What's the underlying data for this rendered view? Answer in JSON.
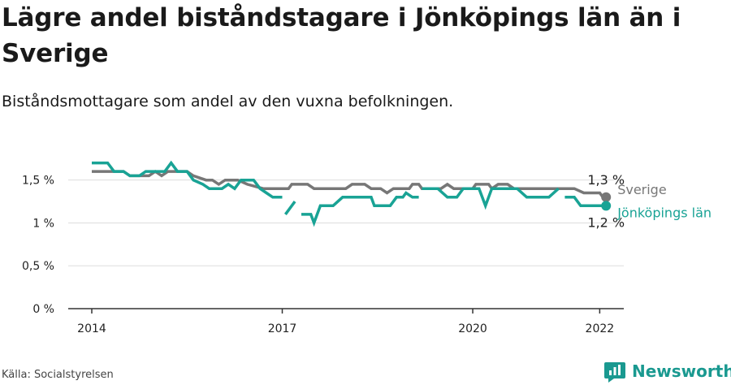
{
  "title": "Lägre andel biståndstagare i Jönköpings län än i Sverige",
  "subtitle": "Biståndsmottagare som andel av den vuxna befolkningen.",
  "source": "Källa: Socialstyrelsen",
  "brand": {
    "name": "Newsworthy",
    "icon": "newsworthy-logo-icon"
  },
  "colors": {
    "sverige": "#777777",
    "jonkoping": "#19a395",
    "grid": "#dddddd",
    "axis": "#333333"
  },
  "chart_data": {
    "type": "line",
    "xlim": [
      2014.0,
      2022.75
    ],
    "ylim": [
      0,
      1.8
    ],
    "x_ticks": [
      {
        "value": 2014,
        "label": "2014"
      },
      {
        "value": 2017,
        "label": "2017"
      },
      {
        "value": 2020,
        "label": "2020"
      },
      {
        "value": 2022,
        "label": "2022"
      }
    ],
    "y_ticks": [
      {
        "value": 0,
        "label": "0 %"
      },
      {
        "value": 0.5,
        "label": "0,5 %"
      },
      {
        "value": 1,
        "label": "1 %"
      },
      {
        "value": 1.5,
        "label": "1,5 %"
      }
    ],
    "series": [
      {
        "name": "Sverige",
        "color": "#777777",
        "end_label": "1,3 %",
        "points": [
          [
            2014.0,
            1.6
          ],
          [
            2014.3,
            1.6
          ],
          [
            2014.4,
            1.6
          ],
          [
            2014.5,
            1.6
          ],
          [
            2014.6,
            1.55
          ],
          [
            2014.9,
            1.55
          ],
          [
            2015.0,
            1.6
          ],
          [
            2015.1,
            1.55
          ],
          [
            2015.2,
            1.6
          ],
          [
            2015.5,
            1.6
          ],
          [
            2015.6,
            1.55
          ],
          [
            2015.8,
            1.5
          ],
          [
            2015.9,
            1.5
          ],
          [
            2016.0,
            1.45
          ],
          [
            2016.1,
            1.5
          ],
          [
            2016.3,
            1.5
          ],
          [
            2016.45,
            1.45
          ],
          [
            2016.7,
            1.4
          ],
          [
            2016.9,
            1.4
          ],
          [
            2017.0,
            1.4
          ],
          [
            2017.1,
            1.4
          ],
          [
            2017.15,
            1.45
          ],
          [
            2017.4,
            1.45
          ],
          [
            2017.5,
            1.4
          ],
          [
            2017.7,
            1.4
          ],
          [
            2017.9,
            1.4
          ],
          [
            2018.0,
            1.4
          ],
          [
            2018.1,
            1.45
          ],
          [
            2018.3,
            1.45
          ],
          [
            2018.4,
            1.4
          ],
          [
            2018.55,
            1.4
          ],
          [
            2018.65,
            1.35
          ],
          [
            2018.75,
            1.4
          ],
          [
            2018.9,
            1.4
          ],
          [
            2019.0,
            1.4
          ],
          [
            2019.05,
            1.45
          ],
          [
            2019.15,
            1.45
          ],
          [
            2019.2,
            1.4
          ],
          [
            2019.5,
            1.4
          ],
          [
            2019.6,
            1.45
          ],
          [
            2019.7,
            1.4
          ],
          [
            2019.9,
            1.4
          ],
          [
            2020.0,
            1.4
          ],
          [
            2020.05,
            1.45
          ],
          [
            2020.25,
            1.45
          ],
          [
            2020.3,
            1.4
          ],
          [
            2020.4,
            1.45
          ],
          [
            2020.55,
            1.45
          ],
          [
            2020.65,
            1.4
          ],
          [
            2020.8,
            1.4
          ],
          [
            2021.0,
            1.4
          ],
          [
            2021.2,
            1.4
          ],
          [
            2021.4,
            1.4
          ],
          [
            2021.6,
            1.4
          ],
          [
            2021.75,
            1.35
          ],
          [
            2022.0,
            1.35
          ],
          [
            2022.05,
            1.3
          ],
          [
            2022.1,
            1.3
          ]
        ]
      },
      {
        "name": "Jönköpings län",
        "color": "#19a395",
        "end_label": "1,2 %",
        "segments": [
          [
            [
              2014.0,
              1.7
            ],
            [
              2014.25,
              1.7
            ],
            [
              2014.35,
              1.6
            ],
            [
              2014.5,
              1.6
            ],
            [
              2014.6,
              1.55
            ],
            [
              2014.75,
              1.55
            ],
            [
              2014.85,
              1.6
            ],
            [
              2015.05,
              1.6
            ],
            [
              2015.15,
              1.6
            ],
            [
              2015.25,
              1.7
            ],
            [
              2015.35,
              1.6
            ],
            [
              2015.5,
              1.6
            ],
            [
              2015.6,
              1.5
            ],
            [
              2015.75,
              1.45
            ],
            [
              2015.85,
              1.4
            ],
            [
              2016.05,
              1.4
            ],
            [
              2016.15,
              1.45
            ],
            [
              2016.25,
              1.4
            ],
            [
              2016.35,
              1.5
            ],
            [
              2016.55,
              1.5
            ],
            [
              2016.65,
              1.4
            ],
            [
              2016.75,
              1.35
            ],
            [
              2016.85,
              1.3
            ],
            [
              2017.0,
              1.3
            ]
          ],
          [
            [
              2017.05,
              1.1
            ],
            [
              2017.2,
              1.25
            ]
          ],
          [
            [
              2017.3,
              1.1
            ],
            [
              2017.45,
              1.1
            ],
            [
              2017.5,
              1.0
            ],
            [
              2017.6,
              1.2
            ],
            [
              2017.8,
              1.2
            ],
            [
              2017.95,
              1.3
            ],
            [
              2018.4,
              1.3
            ],
            [
              2018.45,
              1.2
            ],
            [
              2018.7,
              1.2
            ],
            [
              2018.8,
              1.3
            ],
            [
              2018.9,
              1.3
            ],
            [
              2018.95,
              1.35
            ],
            [
              2019.05,
              1.3
            ],
            [
              2019.15,
              1.3
            ]
          ],
          [
            [
              2019.2,
              1.4
            ],
            [
              2019.45,
              1.4
            ],
            [
              2019.6,
              1.3
            ],
            [
              2019.75,
              1.3
            ],
            [
              2019.85,
              1.4
            ],
            [
              2020.1,
              1.4
            ],
            [
              2020.2,
              1.2
            ],
            [
              2020.3,
              1.4
            ],
            [
              2020.7,
              1.4
            ],
            [
              2020.85,
              1.3
            ],
            [
              2021.05,
              1.3
            ],
            [
              2021.2,
              1.3
            ],
            [
              2021.35,
              1.4
            ]
          ],
          [
            [
              2021.45,
              1.3
            ],
            [
              2021.6,
              1.3
            ],
            [
              2021.7,
              1.2
            ],
            [
              2021.9,
              1.2
            ],
            [
              2022.1,
              1.2
            ]
          ]
        ]
      }
    ]
  }
}
